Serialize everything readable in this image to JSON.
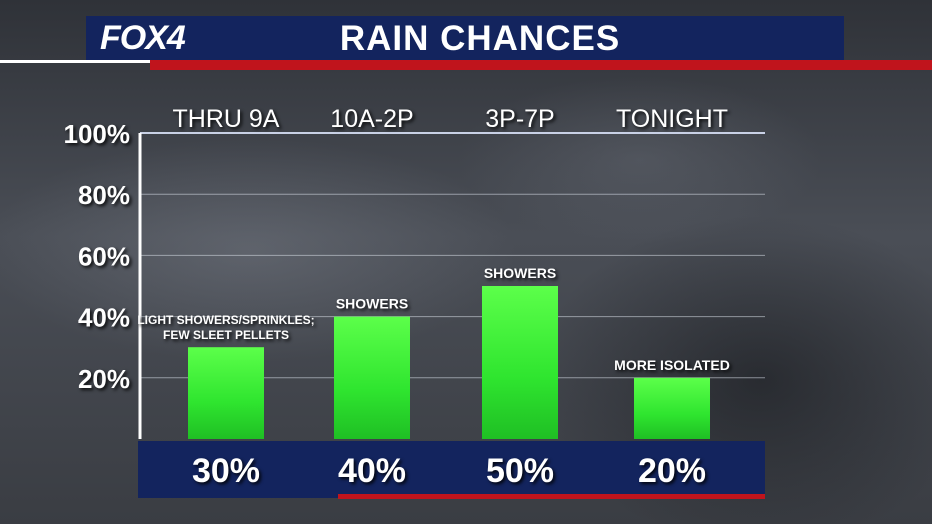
{
  "header": {
    "logo": "FOX4",
    "title": "RAIN CHANCES"
  },
  "chart_data": {
    "type": "bar",
    "categories": [
      "THRU 9A",
      "10A-2P",
      "3P-7P",
      "TONIGHT"
    ],
    "values": [
      30,
      40,
      50,
      20
    ],
    "value_labels": [
      "30%",
      "40%",
      "50%",
      "20%"
    ],
    "annotations": [
      [
        "LIGHT SHOWERS/SPRINKLES;",
        "FEW SLEET PELLETS"
      ],
      [
        "SHOWERS"
      ],
      [
        "SHOWERS"
      ],
      [
        "MORE ISOLATED"
      ]
    ],
    "y_ticks": [
      "20%",
      "40%",
      "60%",
      "80%",
      "100%"
    ],
    "y_tick_values": [
      20,
      40,
      60,
      80,
      100
    ],
    "ylim": [
      0,
      100
    ],
    "grid": true,
    "bar_color": "#33ee33"
  }
}
